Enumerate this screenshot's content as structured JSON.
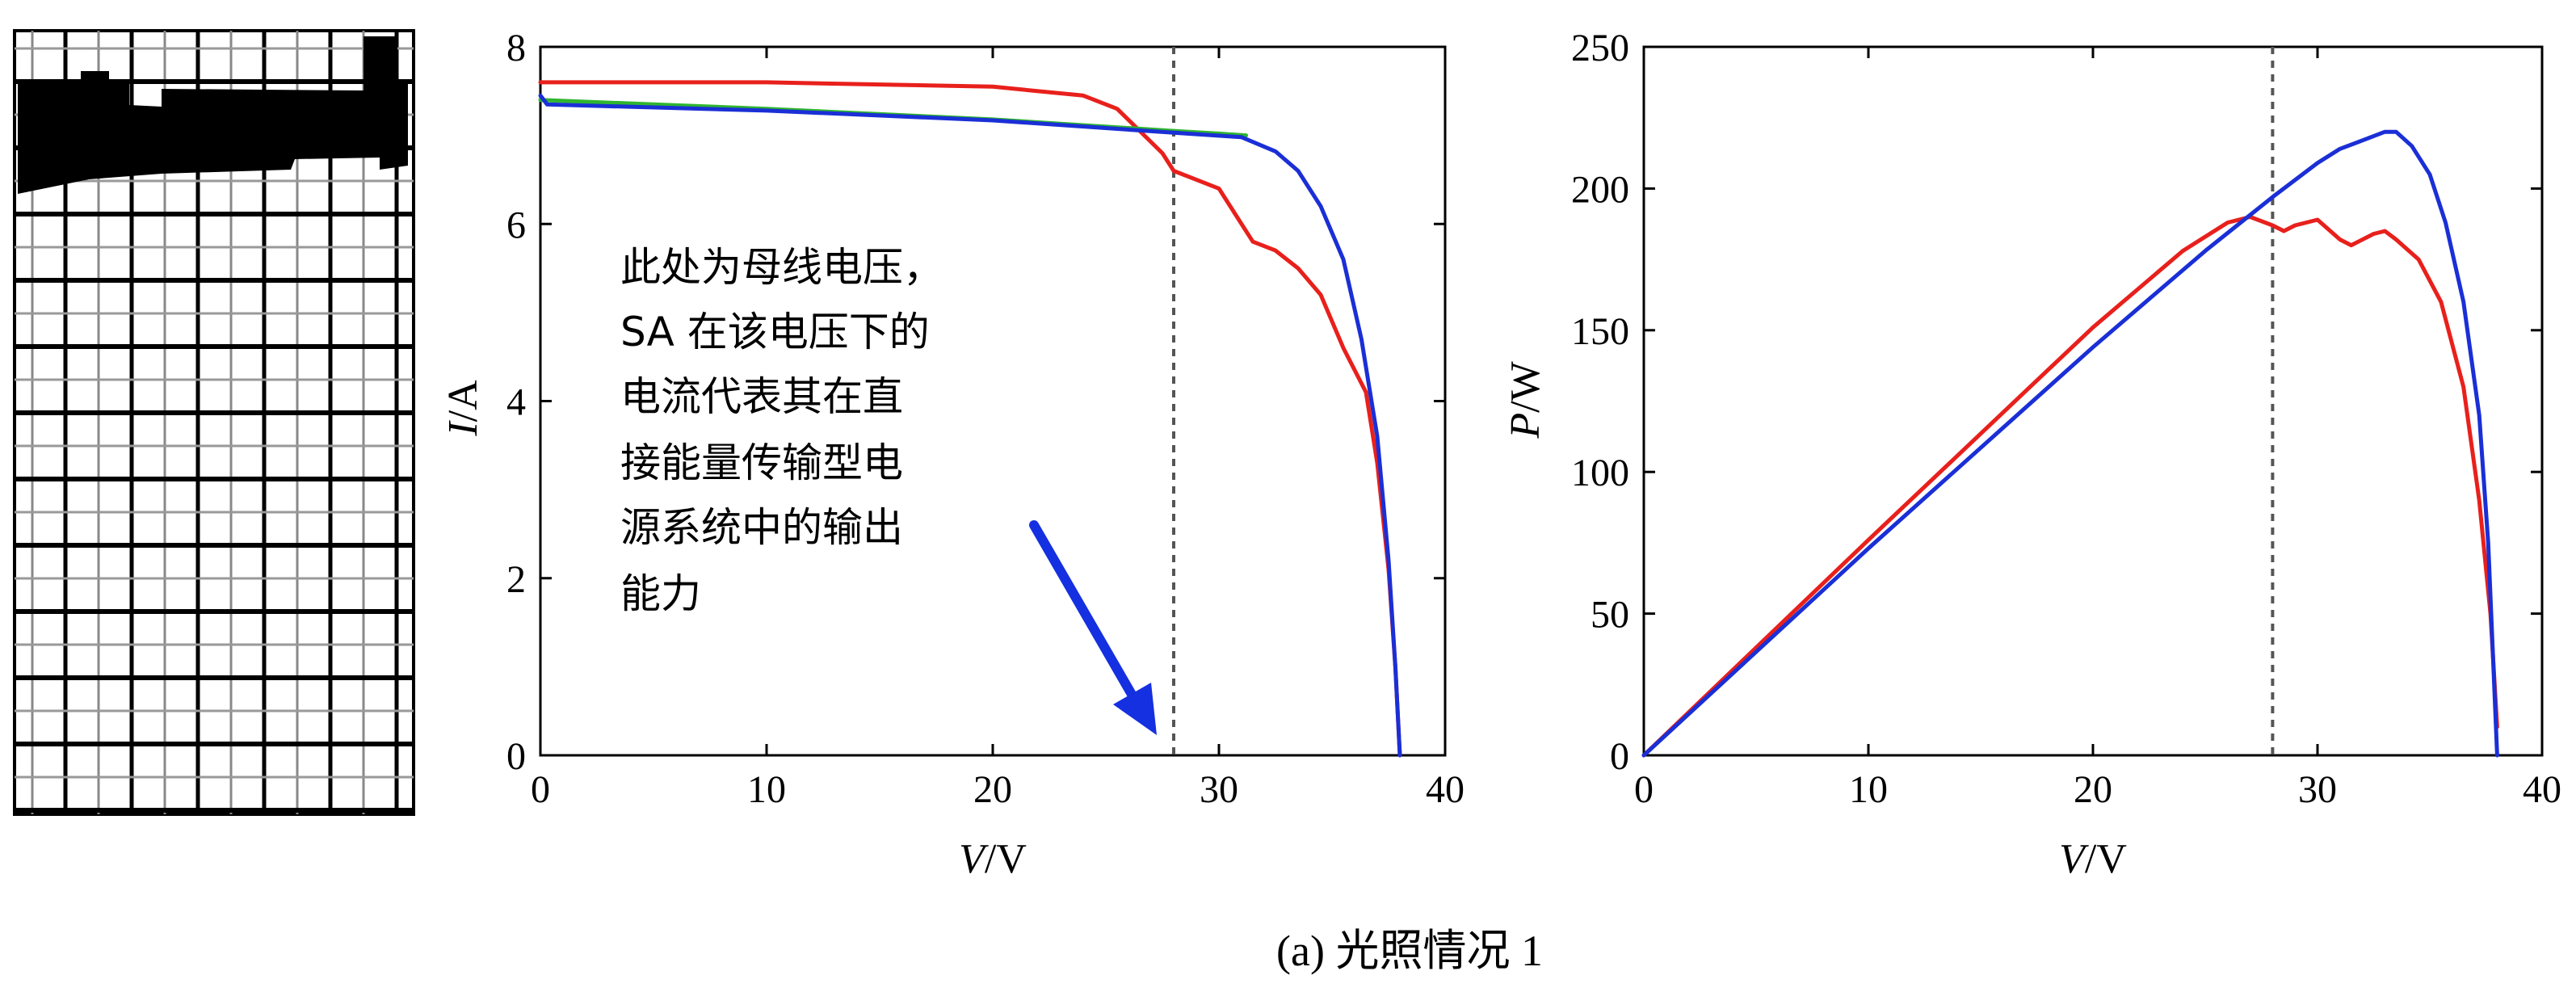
{
  "caption": "(a) 光照情况 1",
  "annotation": {
    "lines": [
      "此处为母线电压，",
      "SA 在该电压下的",
      "电流代表其在直",
      "接能量传输型电",
      "源系统中的输出",
      "能力"
    ]
  },
  "colors": {
    "red": "#e8201c",
    "blue": "#1a2fd6",
    "green": "#2fb52f",
    "arrow": "#1530e0",
    "guide": "#555555"
  },
  "chart_data": [
    {
      "type": "line",
      "xlabel": {
        "italic": "V",
        "rest": "/V"
      },
      "ylabel": {
        "italic": "I",
        "rest": "/A"
      },
      "xlim": [
        0,
        40
      ],
      "ylim": [
        0,
        8
      ],
      "xticks": [
        "0",
        "10",
        "20",
        "30",
        "40"
      ],
      "yticks": [
        "0",
        "2",
        "4",
        "6",
        "8"
      ],
      "vline_x": 28,
      "series": [
        {
          "color": "red",
          "points": [
            [
              0,
              7.6
            ],
            [
              10,
              7.6
            ],
            [
              20,
              7.55
            ],
            [
              24,
              7.45
            ],
            [
              25.5,
              7.3
            ],
            [
              26.5,
              7.05
            ],
            [
              27.5,
              6.8
            ],
            [
              28,
              6.6
            ],
            [
              29,
              6.5
            ],
            [
              30,
              6.4
            ],
            [
              31,
              6.0
            ],
            [
              31.5,
              5.8
            ],
            [
              32.5,
              5.7
            ],
            [
              33.5,
              5.5
            ],
            [
              34.5,
              5.2
            ],
            [
              35.5,
              4.6
            ],
            [
              36.5,
              4.1
            ],
            [
              37,
              3.3
            ],
            [
              37.5,
              2.1
            ],
            [
              37.8,
              1.0
            ],
            [
              38,
              0
            ]
          ]
        },
        {
          "color": "green",
          "points": [
            [
              0,
              7.4
            ],
            [
              10,
              7.3
            ],
            [
              20,
              7.18
            ],
            [
              28,
              7.05
            ],
            [
              30,
              7.02
            ],
            [
              31.2,
              7.0
            ]
          ]
        },
        {
          "color": "blue",
          "points": [
            [
              0,
              7.45
            ],
            [
              0.3,
              7.35
            ],
            [
              10,
              7.28
            ],
            [
              20,
              7.17
            ],
            [
              28,
              7.03
            ],
            [
              31,
              6.98
            ],
            [
              32.5,
              6.82
            ],
            [
              33.5,
              6.6
            ],
            [
              34.5,
              6.2
            ],
            [
              35.5,
              5.6
            ],
            [
              36.3,
              4.7
            ],
            [
              37,
              3.6
            ],
            [
              37.5,
              2.2
            ],
            [
              37.8,
              1.0
            ],
            [
              38,
              0
            ]
          ]
        }
      ]
    },
    {
      "type": "line",
      "xlabel": {
        "italic": "V",
        "rest": "/V"
      },
      "ylabel": {
        "italic": "P",
        "rest": "/W"
      },
      "xlim": [
        0,
        40
      ],
      "ylim": [
        0,
        250
      ],
      "xticks": [
        "0",
        "10",
        "20",
        "30",
        "40"
      ],
      "yticks": [
        "0",
        "50",
        "100",
        "150",
        "200",
        "250"
      ],
      "vline_x": 28,
      "series": [
        {
          "color": "red",
          "points": [
            [
              0,
              0
            ],
            [
              10,
              76
            ],
            [
              20,
              151
            ],
            [
              24,
              178
            ],
            [
              26,
              188
            ],
            [
              27,
              190
            ],
            [
              28,
              187
            ],
            [
              28.5,
              185
            ],
            [
              29,
              187
            ],
            [
              30,
              189
            ],
            [
              31,
              182
            ],
            [
              31.5,
              180
            ],
            [
              32.5,
              184
            ],
            [
              33,
              185
            ],
            [
              33.5,
              182
            ],
            [
              34.5,
              175
            ],
            [
              35.5,
              160
            ],
            [
              36.5,
              130
            ],
            [
              37.2,
              90
            ],
            [
              37.7,
              50
            ],
            [
              38,
              10
            ]
          ]
        },
        {
          "color": "blue",
          "points": [
            [
              0,
              0
            ],
            [
              10,
              73
            ],
            [
              20,
              144
            ],
            [
              25,
              178
            ],
            [
              28,
              197
            ],
            [
              30,
              209
            ],
            [
              31,
              214
            ],
            [
              32,
              217
            ],
            [
              33,
              220
            ],
            [
              33.5,
              220
            ],
            [
              34.2,
              215
            ],
            [
              35,
              205
            ],
            [
              35.7,
              188
            ],
            [
              36.5,
              160
            ],
            [
              37.2,
              120
            ],
            [
              37.6,
              75
            ],
            [
              38,
              0
            ]
          ]
        }
      ]
    }
  ]
}
